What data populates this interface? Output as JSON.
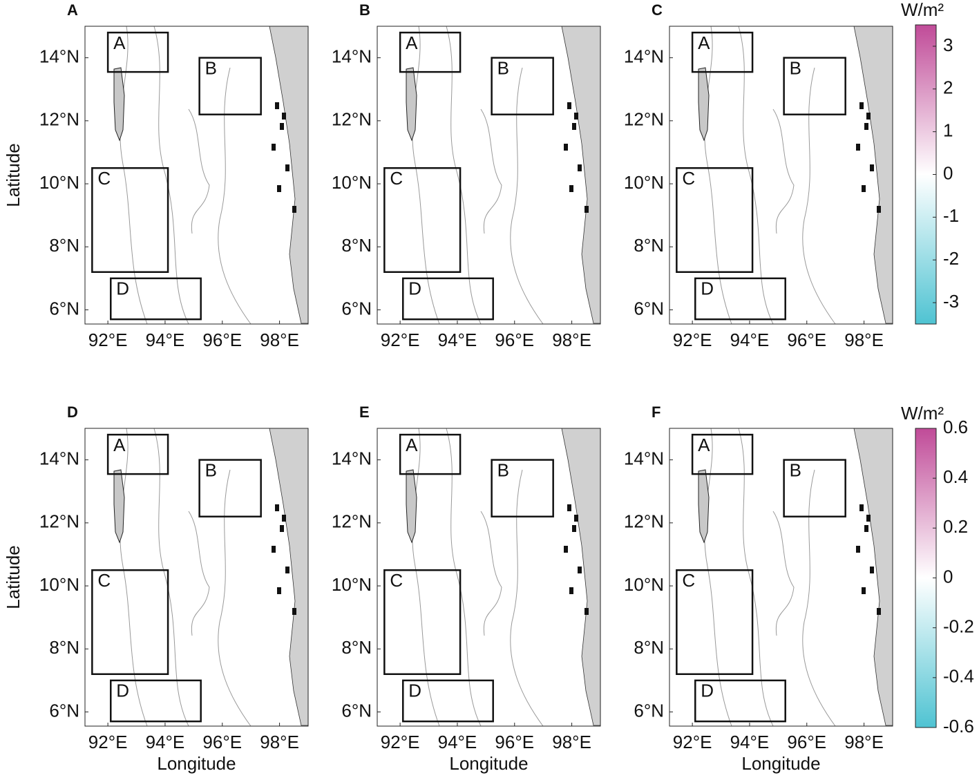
{
  "figure": {
    "panels": [
      {
        "label": "A"
      },
      {
        "label": "B"
      },
      {
        "label": "C"
      },
      {
        "label": "D"
      },
      {
        "label": "E"
      },
      {
        "label": "F"
      }
    ],
    "map": {
      "xlabel": "Longitude",
      "ylabel": "Latitude",
      "xlim": [
        91.2,
        99
      ],
      "ylim": [
        5.55,
        15
      ],
      "xticks": [
        {
          "value": 92,
          "label": "92°E"
        },
        {
          "value": 94,
          "label": "94°E"
        },
        {
          "value": 96,
          "label": "96°E"
        },
        {
          "value": 98,
          "label": "98°E"
        }
      ],
      "yticks": [
        {
          "value": 6,
          "label": "6°N"
        },
        {
          "value": 8,
          "label": "8°N"
        },
        {
          "value": 10,
          "label": "10°N"
        },
        {
          "value": 12,
          "label": "12°N"
        },
        {
          "value": 14,
          "label": "14°N"
        }
      ],
      "regions": [
        {
          "label": "A",
          "lon": [
            92.0,
            94.1
          ],
          "lat": [
            13.55,
            14.8
          ]
        },
        {
          "label": "B",
          "lon": [
            95.2,
            97.35
          ],
          "lat": [
            12.2,
            14.0
          ]
        },
        {
          "label": "C",
          "lon": [
            91.45,
            94.1
          ],
          "lat": [
            7.2,
            10.5
          ]
        },
        {
          "label": "D",
          "lon": [
            92.1,
            95.25
          ],
          "lat": [
            5.7,
            7.0
          ]
        }
      ]
    },
    "colorbars": [
      {
        "unit": "W/m²",
        "lim": [
          -3.5,
          3.5
        ],
        "ticks": [
          -3,
          -2,
          -1,
          0,
          1,
          2,
          3
        ],
        "colors": [
          "#4fc3d2",
          "#ffffff",
          "#c04b98"
        ]
      },
      {
        "unit": "W/m²",
        "lim": [
          -0.6,
          0.6
        ],
        "ticks": [
          -0.6,
          -0.4,
          -0.2,
          0,
          0.2,
          0.4,
          0.6
        ],
        "colors": [
          "#4fc3d2",
          "#ffffff",
          "#c04b98"
        ]
      }
    ]
  }
}
